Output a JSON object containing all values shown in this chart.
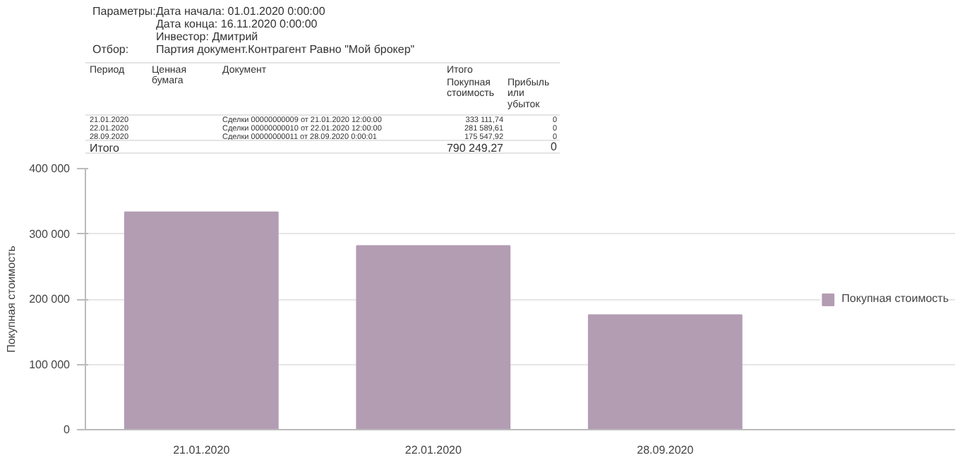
{
  "chart_data": {
    "type": "bar",
    "categories": [
      "21.01.2020",
      "22.01.2020",
      "28.09.2020"
    ],
    "series": [
      {
        "name": "Покупная стоимость",
        "color": "#b39db3",
        "values": [
          333111.74,
          281589.61,
          175547.92
        ]
      }
    ],
    "ylabel": "Покупная стоимость",
    "ylim": [
      0,
      400000
    ],
    "yticks": [
      {
        "value": 0,
        "label": "0"
      },
      {
        "value": 100000,
        "label": "100 000"
      },
      {
        "value": 200000,
        "label": "200 000"
      },
      {
        "value": 300000,
        "label": "300 000"
      },
      {
        "value": 400000,
        "label": "400 000"
      }
    ],
    "grid": "y",
    "legend": "right",
    "annotations": [
      "Параметры:",
      "Дата начала: 01.01.2020 0:00:00",
      "Дата конца: 16.11.2020 0:00:00",
      "Инвестор: Дмитрий",
      "Отбор:",
      "Партия документ.Контрагент Равно \"Мой брокер\"",
      "Период",
      "Ценная бумага",
      "Документ",
      "Итого",
      "Покупная стоимость",
      "Прибыль или убыток",
      "Сделки 00000000009 от 21.01.2020 12:00:00",
      "Сделки 00000000010 от 22.01.2020 12:00:00",
      "Сделки 00000000011 от 28.09.2020 0:00:01",
      "333 111,74",
      "281 589,61",
      "175 547,92",
      "0",
      "0",
      "0",
      "Итого",
      "790 249,27",
      "0"
    ]
  }
}
